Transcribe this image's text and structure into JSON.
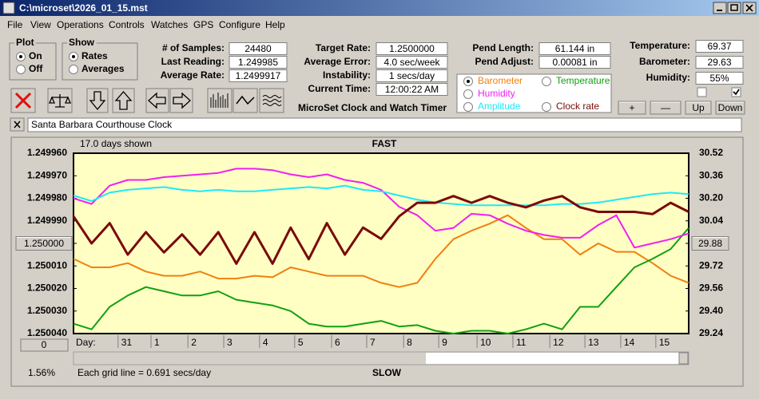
{
  "title_bar": "C:\\microset\\2026_01_15.mst",
  "menu": [
    "File",
    "View",
    "Operations",
    "Controls",
    "Watches",
    "GPS",
    "Configure",
    "Help"
  ],
  "plot_group": {
    "label": "Plot",
    "options": [
      "On",
      "Off"
    ],
    "selected": 0
  },
  "show_group": {
    "label": "Show",
    "options": [
      "Rates",
      "Averages"
    ],
    "selected": 0
  },
  "readouts": [
    {
      "label": "# of Samples:",
      "value": "24480"
    },
    {
      "label": "Last Reading:",
      "value": "1.249985"
    },
    {
      "label": "Average Rate:",
      "value": "1.2499917"
    },
    {
      "label": "Target Rate:",
      "value": "1.2500000"
    },
    {
      "label": "Average Error:",
      "value": "4.0 sec/week"
    },
    {
      "label": "Instability:",
      "value": "1 secs/day"
    },
    {
      "label": "Current Time:",
      "value": "12:00:22 AM"
    },
    {
      "label": "Pend Length:",
      "value": "61.144 in"
    },
    {
      "label": "Pend Adjust:",
      "value": "0.00081 in"
    },
    {
      "label": "Temperature:",
      "value": "69.37"
    },
    {
      "label": "Barometer:",
      "value": "29.63"
    },
    {
      "label": "Humidity:",
      "value": "55%"
    }
  ],
  "checkboxes": [
    false,
    true
  ],
  "adjust_buttons": [
    "+",
    "—",
    "Up",
    "Down"
  ],
  "app_title": "MicroSet Clock and Watch Timer",
  "clock_name": "Santa Barbara Courthouse Clock",
  "chart_data": {
    "type": "line",
    "top_label": "FAST",
    "bottom_label": "SLOW",
    "days_shown": "17.0 days shown",
    "grid_note": "Each grid line = 0.691 secs/day",
    "x_label": "Day:",
    "zoom_button": "0",
    "percent": "1.56%",
    "legend_selected": 0,
    "grid": false,
    "xlim": [
      0,
      17
    ],
    "xticks": [
      {
        "value": 1.32,
        "label": "31"
      },
      {
        "value": 2.23,
        "label": "1"
      },
      {
        "value": 3.25,
        "label": "2"
      },
      {
        "value": 4.24,
        "label": "3"
      },
      {
        "value": 5.23,
        "label": "4"
      },
      {
        "value": 6.2,
        "label": "5"
      },
      {
        "value": 7.22,
        "label": "6"
      },
      {
        "value": 8.19,
        "label": "7"
      },
      {
        "value": 9.21,
        "label": "8"
      },
      {
        "value": 10.18,
        "label": "9"
      },
      {
        "value": 11.24,
        "label": "10"
      },
      {
        "value": 12.23,
        "label": "11"
      },
      {
        "value": 13.25,
        "label": "12"
      },
      {
        "value": 14.22,
        "label": "13"
      },
      {
        "value": 15.21,
        "label": "14"
      },
      {
        "value": 16.18,
        "label": "15"
      }
    ],
    "ylim": [
      1.25004,
      1.24996
    ],
    "yticks": [
      {
        "value": 1.24996,
        "label": "1.249960"
      },
      {
        "value": 1.24997,
        "label": "1.249970"
      },
      {
        "value": 1.24998,
        "label": "1.249980"
      },
      {
        "value": 1.24999,
        "label": "1.249990"
      },
      {
        "value": 1.25,
        "label": "1.250000"
      },
      {
        "value": 1.25001,
        "label": "1.250010"
      },
      {
        "value": 1.25002,
        "label": "1.250020"
      },
      {
        "value": 1.25003,
        "label": "1.250030"
      },
      {
        "value": 1.25004,
        "label": "1.250040"
      }
    ],
    "y2lim": [
      29.24,
      30.52
    ],
    "y2ticks": [
      30.52,
      30.36,
      {
        "value": 30.2,
        "label": "30.20"
      },
      30.04,
      29.88,
      29.72,
      29.56,
      {
        "value": 29.4,
        "label": "29.40"
      },
      29.24
    ],
    "x": [
      0,
      0.5,
      1,
      1.5,
      2,
      2.5,
      3,
      3.5,
      4,
      4.5,
      5,
      5.5,
      6,
      6.5,
      7,
      7.5,
      8,
      8.5,
      9,
      9.5,
      10,
      10.5,
      11,
      11.5,
      12,
      12.5,
      13,
      13.5,
      14,
      14.5,
      15,
      15.5,
      16,
      16.5,
      17
    ],
    "series": [
      {
        "name": "Barometer",
        "color": "#f08010",
        "axis": "y2",
        "values": [
          29.77,
          29.71,
          29.71,
          29.74,
          29.68,
          29.65,
          29.65,
          29.68,
          29.63,
          29.63,
          29.65,
          29.64,
          29.71,
          29.68,
          29.65,
          29.65,
          29.65,
          29.6,
          29.57,
          29.6,
          29.77,
          29.91,
          29.97,
          30.02,
          30.08,
          29.99,
          29.91,
          29.91,
          29.8,
          29.88,
          29.82,
          29.82,
          29.74,
          29.65,
          29.6
        ]
      },
      {
        "name": "Temperature",
        "color": "#10a010",
        "axis": "y2",
        "values": [
          29.31,
          29.27,
          29.43,
          29.51,
          29.57,
          29.54,
          29.51,
          29.51,
          29.54,
          29.48,
          29.46,
          29.44,
          29.4,
          29.31,
          29.29,
          29.29,
          29.31,
          29.33,
          29.29,
          29.3,
          29.26,
          29.24,
          29.26,
          29.26,
          29.24,
          29.27,
          29.31,
          29.27,
          29.43,
          29.43,
          29.57,
          29.71,
          29.77,
          29.84,
          29.99
        ]
      },
      {
        "name": "Humidity",
        "color": "#f020f0",
        "axis": "y2",
        "values": [
          30.2,
          30.16,
          30.29,
          30.33,
          30.33,
          30.35,
          30.36,
          30.37,
          30.38,
          30.41,
          30.41,
          30.4,
          30.37,
          30.35,
          30.37,
          30.33,
          30.31,
          30.26,
          30.14,
          30.08,
          29.97,
          29.99,
          30.09,
          30.08,
          30.02,
          29.97,
          29.94,
          29.92,
          29.92,
          30.01,
          30.08,
          29.85,
          29.88,
          29.91,
          29.95
        ]
      },
      {
        "name": "Amplitude",
        "color": "#20e8f8",
        "axis": "y2",
        "values": [
          30.22,
          30.18,
          30.24,
          30.26,
          30.27,
          30.28,
          30.26,
          30.25,
          30.26,
          30.25,
          30.25,
          30.26,
          30.27,
          30.28,
          30.27,
          30.29,
          30.26,
          30.25,
          30.22,
          30.19,
          30.17,
          30.16,
          30.15,
          30.15,
          30.15,
          30.15,
          30.15,
          30.16,
          30.16,
          30.17,
          30.19,
          30.21,
          30.23,
          30.24,
          30.23
        ]
      },
      {
        "name": "Clock rate",
        "color": "#7a0a0a",
        "axis": "y",
        "values": [
          1.249988,
          1.25,
          1.249991,
          1.250005,
          1.249995,
          1.250004,
          1.249996,
          1.250005,
          1.249995,
          1.250009,
          1.249995,
          1.250009,
          1.249993,
          1.250007,
          1.249991,
          1.250005,
          1.249993,
          1.249998,
          1.249988,
          1.249982,
          1.249982,
          1.249979,
          1.249982,
          1.249979,
          1.249982,
          1.249984,
          1.249981,
          1.249979,
          1.249984,
          1.249986,
          1.249986,
          1.249986,
          1.249987,
          1.249982,
          1.249986
        ]
      }
    ]
  }
}
